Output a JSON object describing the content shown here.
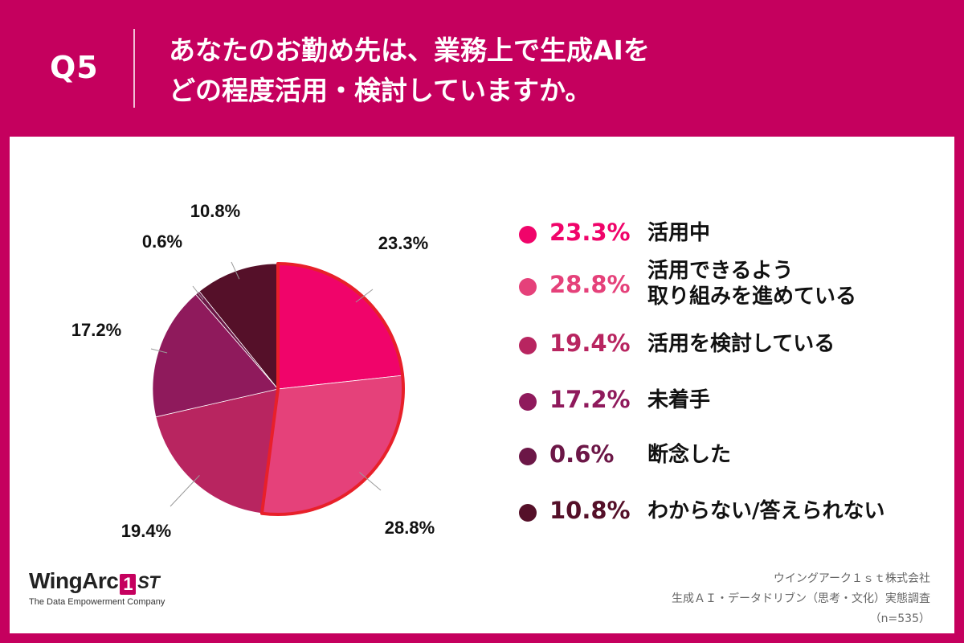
{
  "header": {
    "question_label": "Q5",
    "title_line1": "あなたのお勤め先は、業務上で生成AIを",
    "title_line2": "どの程度活用・検討していますか。"
  },
  "colors": {
    "background": "#c5005e",
    "highlight_outline": "#e8202a",
    "slice_1": "#f0046a",
    "slice_2": "#e5417a",
    "slice_3": "#b82560",
    "slice_4": "#8f1a5c",
    "slice_5": "#6c1747",
    "slice_6": "#551029"
  },
  "chart_data": {
    "type": "pie",
    "title": "",
    "start": "12 o'clock, clockwise",
    "slices": [
      {
        "label": "活用中",
        "value": 23.3,
        "value_label": "23.3%",
        "color": "#f0046a",
        "highlighted": true
      },
      {
        "label": "活用できるよう取り組みを進めている",
        "label_lines": [
          "活用できるよう",
          "取り組みを進めている"
        ],
        "value": 28.8,
        "value_label": "28.8%",
        "color": "#e5417a",
        "highlighted": true
      },
      {
        "label": "活用を検討している",
        "value": 19.4,
        "value_label": "19.4%",
        "color": "#b82560",
        "highlighted": false
      },
      {
        "label": "未着手",
        "value": 17.2,
        "value_label": "17.2%",
        "color": "#8f1a5c",
        "highlighted": false
      },
      {
        "label": "断念した",
        "value": 0.6,
        "value_label": "0.6%",
        "color": "#6c1747",
        "highlighted": false
      },
      {
        "label": "わからない/答えられない",
        "value": 10.8,
        "value_label": "10.8%",
        "color": "#551029",
        "highlighted": false
      }
    ]
  },
  "footer": {
    "logo_text": "WingArc",
    "logo_badge": "1",
    "logo_suffix": "ST",
    "logo_tagline": "The Data Empowerment Company",
    "source_company": "ウイングアーク１ｓｔ株式会社",
    "source_survey": "生成ＡＩ・データドリブン（思考・文化）実態調査",
    "source_sample": "（n=535）"
  }
}
